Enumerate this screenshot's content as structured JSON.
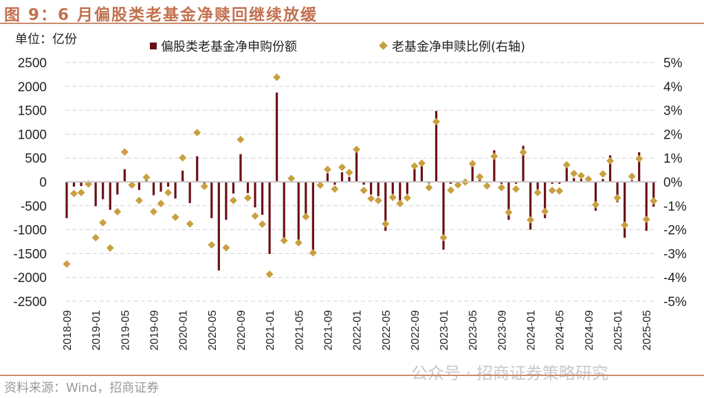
{
  "header": {
    "title": "图 9：6 月偏股类老基金净赎回继续放缓"
  },
  "footer": {
    "source": "资料来源：Wind，招商证券",
    "watermark": "公众号 · 招商证券策略研究"
  },
  "colors": {
    "bar": "#6b0f14",
    "diamond": "#c9a040",
    "title": "#c2714f",
    "grid": "#d0d0d0"
  },
  "chart_data": {
    "type": "bar+scatter",
    "unit_label": "单位：亿份",
    "legend_placement": "top",
    "grid": true,
    "y_left": {
      "ylim": [
        -2500,
        2500
      ],
      "ticks": [
        "2500",
        "2000",
        "1500",
        "1000",
        "500",
        "0",
        "-500",
        "-1000",
        "-1500",
        "-2000",
        "-2500"
      ]
    },
    "y_right": {
      "ylim": [
        -5,
        5
      ],
      "ticks": [
        "5%",
        "4%",
        "3%",
        "2%",
        "1%",
        "0%",
        "-1%",
        "-2%",
        "-3%",
        "-4%",
        "-5%"
      ]
    },
    "x_tick_labels": [
      "2018-09",
      "2019-01",
      "2019-05",
      "2019-09",
      "2020-01",
      "2020-05",
      "2020-09",
      "2021-01",
      "2021-05",
      "2021-09",
      "2022-01",
      "2022-05",
      "2022-09",
      "2023-01",
      "2023-05",
      "2023-09",
      "2024-01",
      "2024-05",
      "2024-09",
      "2025-01",
      "2025-05"
    ],
    "x": [
      "2018-09",
      "2018-10",
      "2018-11",
      "2018-12",
      "2019-01",
      "2019-02",
      "2019-03",
      "2019-04",
      "2019-05",
      "2019-06",
      "2019-07",
      "2019-08",
      "2019-09",
      "2019-10",
      "2019-11",
      "2019-12",
      "2020-01",
      "2020-02",
      "2020-03",
      "2020-04",
      "2020-05",
      "2020-06",
      "2020-07",
      "2020-08",
      "2020-09",
      "2020-10",
      "2020-11",
      "2020-12",
      "2021-01",
      "2021-02",
      "2021-03",
      "2021-04",
      "2021-05",
      "2021-06",
      "2021-07",
      "2021-08",
      "2021-09",
      "2021-10",
      "2021-11",
      "2021-12",
      "2022-01",
      "2022-02",
      "2022-03",
      "2022-04",
      "2022-05",
      "2022-06",
      "2022-07",
      "2022-08",
      "2022-09",
      "2022-10",
      "2022-11",
      "2022-12",
      "2023-01",
      "2023-02",
      "2023-03",
      "2023-04",
      "2023-05",
      "2023-06",
      "2023-07",
      "2023-08",
      "2023-09",
      "2023-10",
      "2023-11",
      "2023-12",
      "2024-01",
      "2024-02",
      "2024-03",
      "2024-04",
      "2024-05",
      "2024-06",
      "2024-07",
      "2024-08",
      "2024-09",
      "2024-10",
      "2024-11",
      "2024-12",
      "2025-01",
      "2025-02",
      "2025-03",
      "2025-04",
      "2025-05",
      "2025-06"
    ],
    "series": [
      {
        "name": "偏股类老基金净申购份额",
        "type": "bar",
        "axis": "left",
        "values": [
          -760,
          -100,
          -90,
          -40,
          -510,
          -365,
          -585,
          -265,
          265,
          -20,
          -170,
          50,
          -280,
          -205,
          -100,
          -350,
          235,
          -445,
          535,
          -40,
          -760,
          -1855,
          -795,
          -245,
          580,
          -235,
          -535,
          -690,
          -1510,
          1870,
          -1230,
          10,
          -1275,
          -730,
          -1485,
          -10,
          180,
          -60,
          200,
          105,
          705,
          -60,
          -265,
          -300,
          -1025,
          -255,
          -400,
          -255,
          345,
          440,
          -30,
          1485,
          -1420,
          -40,
          -20,
          0,
          380,
          60,
          -10,
          660,
          -40,
          -795,
          -40,
          755,
          -1000,
          -160,
          -760,
          -40,
          -40,
          410,
          80,
          60,
          20,
          -605,
          60,
          555,
          -425,
          -1170,
          35,
          620,
          -1025,
          -520
        ]
      },
      {
        "name": "老基金净申赎比例(右轴)",
        "type": "scatter",
        "axis": "right",
        "values": [
          -3.44,
          -0.49,
          -0.45,
          -0.09,
          -2.34,
          -1.71,
          -2.77,
          -1.25,
          1.25,
          -0.13,
          -0.78,
          0.19,
          -1.25,
          -0.91,
          -0.45,
          -1.48,
          1.01,
          -1.76,
          2.06,
          -0.19,
          -2.64,
          null,
          -2.76,
          -0.78,
          1.77,
          -0.67,
          -1.43,
          -1.77,
          -3.87,
          4.38,
          -2.46,
          0.14,
          -2.55,
          -1.46,
          -2.97,
          -0.14,
          0.52,
          -0.3,
          0.61,
          0.39,
          1.36,
          -0.36,
          -0.7,
          -0.78,
          -1.76,
          -0.65,
          -0.91,
          -0.67,
          0.66,
          0.78,
          -0.24,
          2.52,
          -2.34,
          -0.35,
          -0.13,
          -0.01,
          0.76,
          0.21,
          -0.17,
          1.07,
          -0.24,
          -1.28,
          -0.3,
          1.24,
          -1.59,
          -0.45,
          -1.24,
          -0.36,
          -0.38,
          0.71,
          0.35,
          0.26,
          0.11,
          -0.96,
          0.33,
          0.88,
          -0.67,
          -1.81,
          0.23,
          0.97,
          -1.57,
          -0.8
        ]
      }
    ]
  }
}
